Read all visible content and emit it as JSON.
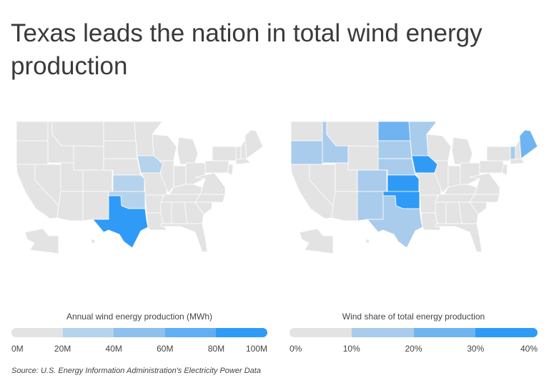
{
  "title": "Texas leads the nation in total wind energy production",
  "source": "Source:  U.S. Energy Information Administration's Electricity Power Data",
  "maps": [
    {
      "legend_title": "Annual wind energy production (MWh)",
      "ticks": [
        "0M",
        "20M",
        "40M",
        "60M",
        "80M",
        "100M"
      ],
      "bin_colors": [
        "#e3e3e3",
        "#b5d3ec",
        "#8dc0ee",
        "#62aef2",
        "#2f9bf7"
      ],
      "state_bins": {
        "TX": 4,
        "IA": 1,
        "KS": 1,
        "OK": 1
      }
    },
    {
      "legend_title": "Wind share of total energy production",
      "ticks": [
        "0%",
        "10%",
        "20%",
        "30%",
        "40%"
      ],
      "bin_colors": [
        "#e3e3e3",
        "#a9cced",
        "#6fb4f1",
        "#2f9bf7"
      ],
      "state_bins": {
        "IA": 3,
        "KS": 3,
        "OK": 3,
        "ND": 2,
        "ME": 2,
        "OR": 1,
        "ID": 1,
        "SD": 1,
        "MN": 1,
        "NE": 1,
        "CO": 1,
        "NM": 1,
        "TX": 1,
        "VT": 1
      }
    }
  ]
}
